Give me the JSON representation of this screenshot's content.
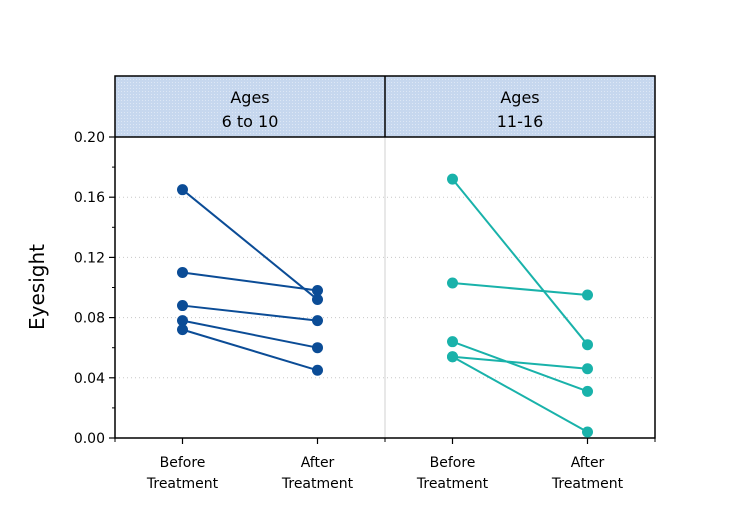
{
  "chart_data": {
    "type": "line",
    "ylabel": "Eyesight",
    "ylim": [
      0,
      0.2
    ],
    "yticks": [
      "0.00",
      "0.04",
      "0.08",
      "0.12",
      "0.16",
      "0.20"
    ],
    "ytick_values": [
      0,
      0.04,
      0.08,
      0.12,
      0.16,
      0.2
    ],
    "categories": [
      [
        "Before",
        "Treatment"
      ],
      [
        "After",
        "Treatment"
      ]
    ],
    "panels": [
      {
        "title": [
          "Ages",
          "6 to 10"
        ],
        "color": "#0b4c96",
        "series": [
          {
            "values": [
              0.165,
              0.092
            ]
          },
          {
            "values": [
              0.11,
              0.098
            ]
          },
          {
            "values": [
              0.088,
              0.078
            ]
          },
          {
            "values": [
              0.078,
              0.06
            ]
          },
          {
            "values": [
              0.072,
              0.045
            ]
          }
        ]
      },
      {
        "title": [
          "Ages",
          "11-16"
        ],
        "color": "#19b2aa",
        "series": [
          {
            "values": [
              0.172,
              0.062
            ]
          },
          {
            "values": [
              0.103,
              0.095
            ]
          },
          {
            "values": [
              0.064,
              0.031
            ]
          },
          {
            "values": [
              0.054,
              0.046
            ]
          },
          {
            "values": [
              0.054,
              0.004
            ]
          }
        ]
      }
    ],
    "header_fill": "#c6d7ee",
    "grid": "horizontal-dotted"
  }
}
